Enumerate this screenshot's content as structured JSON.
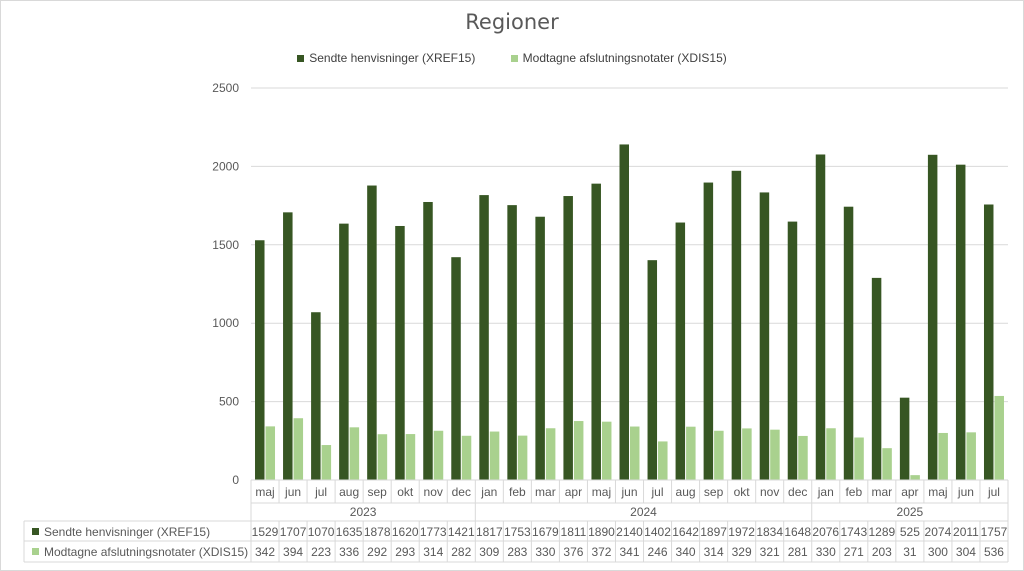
{
  "chart_data": {
    "type": "bar",
    "title": "Regioner",
    "ylim": [
      0,
      2500
    ],
    "yticks": [
      0,
      500,
      1000,
      1500,
      2000,
      2500
    ],
    "grid": true,
    "legend_position": "top",
    "years": [
      {
        "label": "2023",
        "count": 8
      },
      {
        "label": "2024",
        "count": 12
      },
      {
        "label": "2025",
        "count": 7
      }
    ],
    "categories": [
      "maj",
      "jun",
      "jul",
      "aug",
      "sep",
      "okt",
      "nov",
      "dec",
      "jan",
      "feb",
      "mar",
      "apr",
      "maj",
      "jun",
      "jul",
      "aug",
      "sep",
      "okt",
      "nov",
      "dec",
      "jan",
      "feb",
      "mar",
      "apr",
      "maj",
      "jun",
      "jul"
    ],
    "series": [
      {
        "name": "Sendte henvisninger (XREF15)",
        "color": "#375623",
        "values": [
          1529,
          1707,
          1070,
          1635,
          1878,
          1620,
          1773,
          1421,
          1817,
          1753,
          1679,
          1811,
          1890,
          2140,
          1402,
          1642,
          1897,
          1972,
          1834,
          1648,
          2076,
          1743,
          1289,
          525,
          2074,
          2011,
          1757
        ]
      },
      {
        "name": "Modtagne afslutningsnotater (XDIS15)",
        "color": "#a9d18e",
        "values": [
          342,
          394,
          223,
          336,
          292,
          293,
          314,
          282,
          309,
          283,
          330,
          376,
          372,
          341,
          246,
          340,
          314,
          329,
          321,
          281,
          330,
          271,
          203,
          31,
          300,
          304,
          536
        ]
      }
    ]
  }
}
